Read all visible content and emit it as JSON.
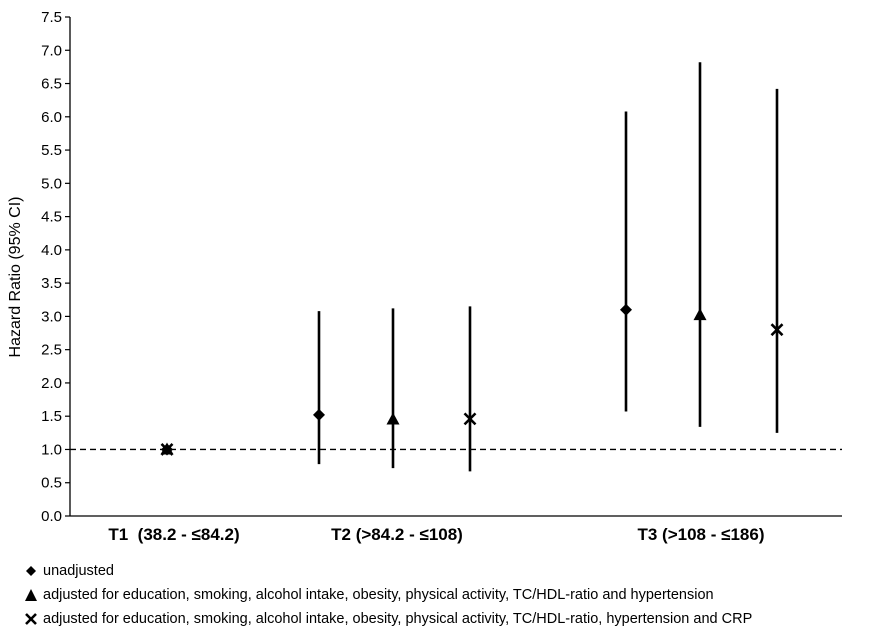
{
  "chart_data": {
    "type": "scatter",
    "title": "",
    "xlabel": "",
    "ylabel": "Hazard Ratio (95% CI)",
    "ylim": [
      0,
      7.5
    ],
    "y_ticks": [
      "0.0",
      "0.5",
      "1.0",
      "1.5",
      "2.0",
      "2.5",
      "3.0",
      "3.5",
      "4.0",
      "4.5",
      "5.0",
      "5.5",
      "6.0",
      "6.5",
      "7.0",
      "7.5"
    ],
    "reference_line": {
      "y": 1.0,
      "style": "dashed"
    },
    "categories": [
      "T1  (38.2 - ≤84.2)",
      "T2 (>84.2 - ≤108)",
      "T3 (>108 - ≤186)"
    ],
    "series": [
      {
        "name": "unadjusted",
        "marker": "diamond",
        "points": [
          {
            "category": 0,
            "hr": 1.0,
            "lower": 1.0,
            "upper": 1.0
          },
          {
            "category": 1,
            "hr": 1.52,
            "lower": 0.78,
            "upper": 3.08
          },
          {
            "category": 2,
            "hr": 3.1,
            "lower": 1.57,
            "upper": 6.08
          }
        ]
      },
      {
        "name": "adjusted for education, smoking, alcohol intake, obesity, physical activity, TC/HDL-ratio and hypertension",
        "marker": "triangle",
        "points": [
          {
            "category": 0,
            "hr": 1.0,
            "lower": 1.0,
            "upper": 1.0
          },
          {
            "category": 1,
            "hr": 1.45,
            "lower": 0.72,
            "upper": 3.12
          },
          {
            "category": 2,
            "hr": 3.02,
            "lower": 1.34,
            "upper": 6.82
          }
        ]
      },
      {
        "name": "adjusted for education, smoking, alcohol intake, obesity, physical activity, TC/HDL-ratio, hypertension and CRP",
        "marker": "x",
        "points": [
          {
            "category": 0,
            "hr": 1.0,
            "lower": 1.0,
            "upper": 1.0
          },
          {
            "category": 1,
            "hr": 1.46,
            "lower": 0.67,
            "upper": 3.15
          },
          {
            "category": 2,
            "hr": 2.8,
            "lower": 1.25,
            "upper": 6.42
          }
        ]
      }
    ],
    "legend_position": "bottom-left",
    "grid": false
  }
}
